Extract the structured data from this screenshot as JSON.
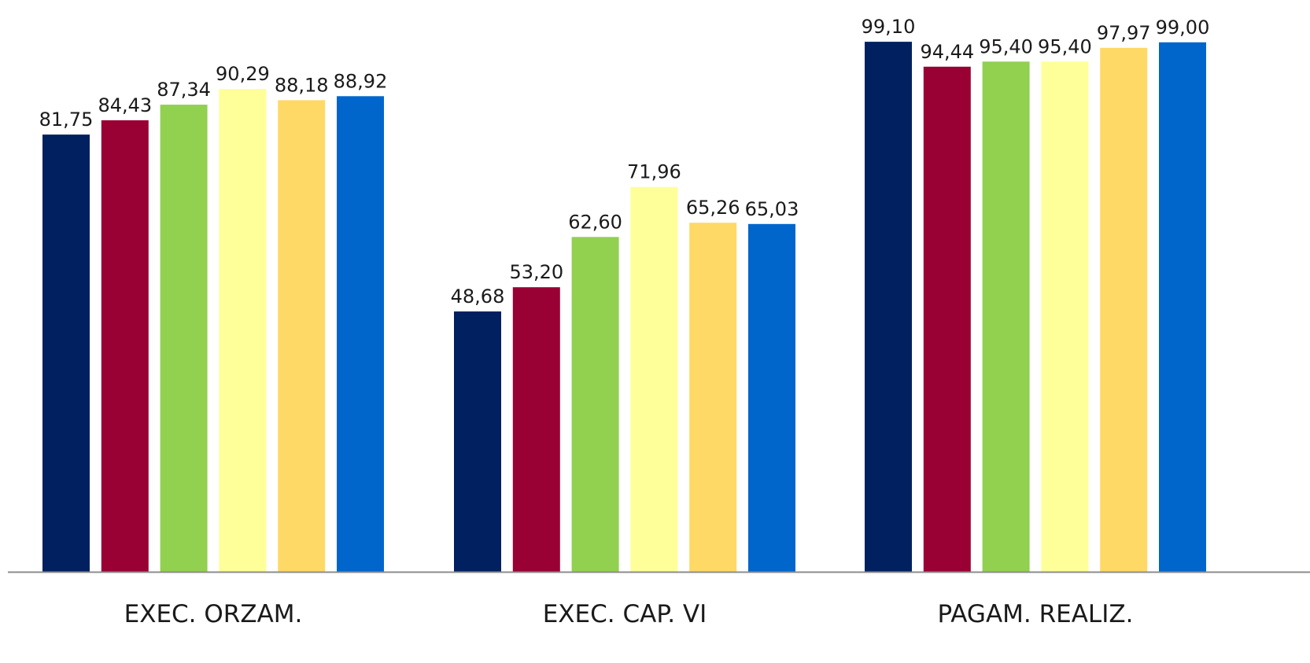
{
  "chart_data": {
    "type": "bar",
    "categories": [
      "EXEC. ORZAM.",
      "EXEC. CAP. VI",
      "PAGAM. REALIZ."
    ],
    "series": [
      {
        "color": "#002060",
        "values": [
          81.75,
          48.68,
          99.1
        ],
        "labels": [
          "81,75",
          "48,68",
          "99,10"
        ]
      },
      {
        "color": "#990033",
        "values": [
          84.43,
          53.2,
          94.44
        ],
        "labels": [
          "84,43",
          "53,20",
          "94,44"
        ]
      },
      {
        "color": "#92D050",
        "values": [
          87.34,
          62.6,
          95.4
        ],
        "labels": [
          "87,34",
          "62,60",
          "95,40"
        ]
      },
      {
        "color": "#FFFF99",
        "values": [
          90.29,
          71.96,
          95.4
        ],
        "labels": [
          "90,29",
          "71,96",
          "95,40"
        ]
      },
      {
        "color": "#FFD966",
        "values": [
          88.18,
          65.26,
          97.97
        ],
        "labels": [
          "88,18",
          "65,26",
          "97,97"
        ]
      },
      {
        "color": "#0066CC",
        "values": [
          88.92,
          65.03,
          99.0
        ],
        "labels": [
          "88,92",
          "65,03",
          "99,00"
        ]
      }
    ],
    "title": "",
    "xlabel": "",
    "ylabel": "",
    "ylim": [
      0,
      100
    ],
    "grid": false,
    "legend": "none",
    "axis_color": "#8c8c8c"
  }
}
